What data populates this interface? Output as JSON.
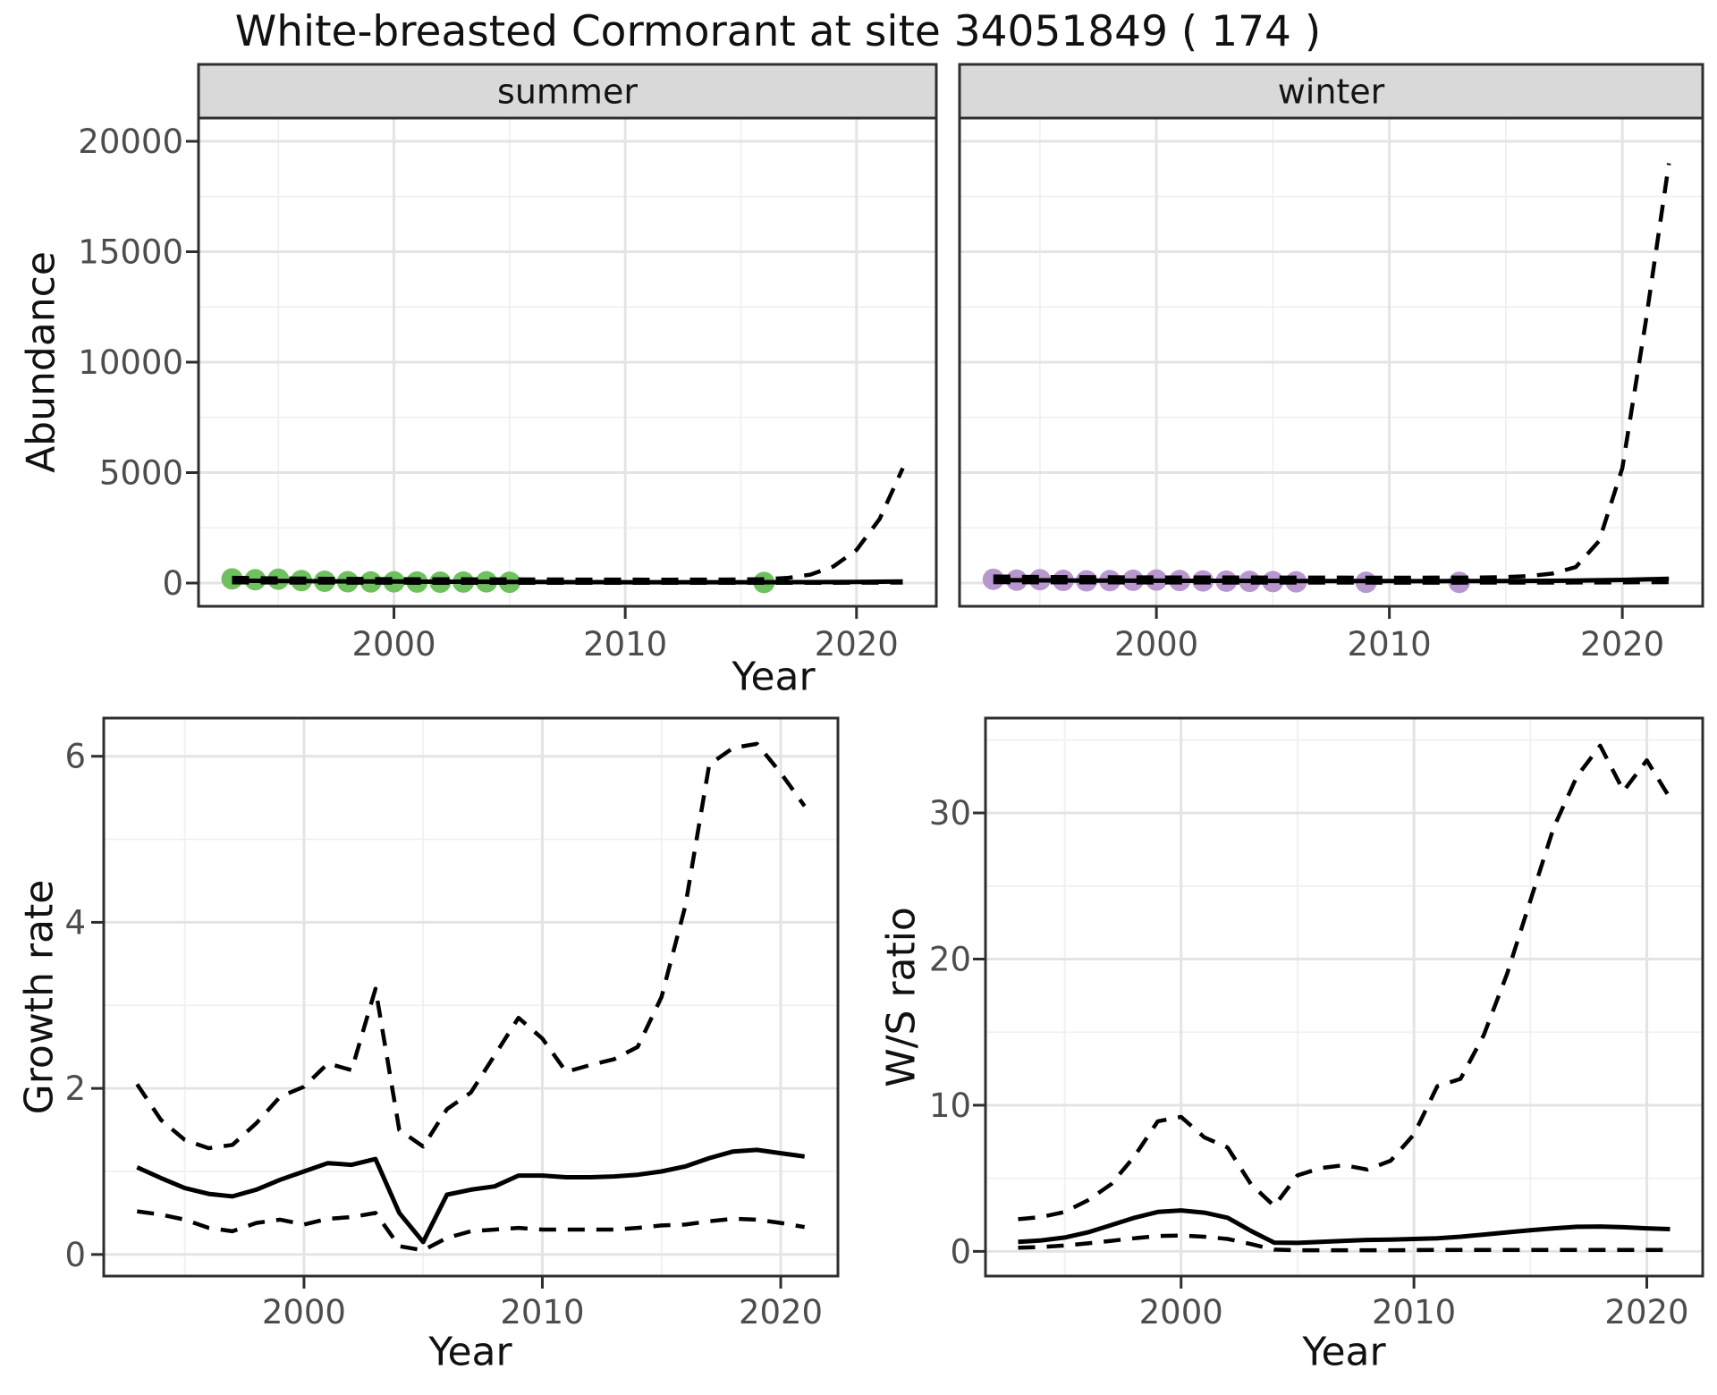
{
  "title": "White-breasted Cormorant at site 34051849 ( 174 )",
  "colors": {
    "summer_point": "#6fc05e",
    "winter_point": "#b897cf",
    "series_line": "#000000",
    "grid_major": "#e4e4e4",
    "grid_minor": "#f0f0f0",
    "strip_bg": "#d9d9d9",
    "panel_border": "#2e2e2e",
    "tick_text": "#4d4d4d",
    "text": "#111111"
  },
  "chart_data": [
    {
      "type": "line",
      "name": "summer-abundance",
      "facet": "summer",
      "xlabel": "Year",
      "ylabel": "Abundance",
      "x_ticks": [
        2000,
        2010,
        2020
      ],
      "x_minor": [
        1995,
        2005,
        2015
      ],
      "y_ticks": [
        0,
        5000,
        10000,
        15000,
        20000
      ],
      "y_minor": [
        2500,
        7500,
        12500,
        17500
      ],
      "xlim": [
        1991.55,
        2023.45
      ],
      "ylim": [
        -1052,
        21052
      ],
      "grid": true,
      "x": [
        1993,
        1994,
        1995,
        1996,
        1997,
        1998,
        1999,
        2000,
        2001,
        2002,
        2003,
        2004,
        2005,
        2006,
        2007,
        2008,
        2009,
        2010,
        2011,
        2012,
        2013,
        2014,
        2015,
        2016,
        2017,
        2018,
        2019,
        2020,
        2021,
        2022
      ],
      "series": [
        {
          "name": "median",
          "style": "solid",
          "values": [
            110,
            100,
            95,
            88,
            82,
            77,
            72,
            68,
            65,
            62,
            60,
            56,
            52,
            48,
            45,
            42,
            40,
            38,
            37,
            36,
            36,
            36,
            37,
            38,
            40,
            43,
            47,
            52,
            60,
            70
          ]
        },
        {
          "name": "upper_95ci",
          "style": "dashed",
          "values": [
            240,
            225,
            212,
            202,
            195,
            189,
            184,
            180,
            176,
            173,
            170,
            168,
            166,
            164,
            162,
            160,
            158,
            157,
            156,
            156,
            157,
            160,
            166,
            178,
            230,
            380,
            750,
            1500,
            2900,
            5200
          ]
        },
        {
          "name": "lower_95ci",
          "style": "dashed",
          "values": [
            30,
            26,
            23,
            21,
            19,
            17,
            16,
            15,
            14,
            13,
            12,
            12,
            11,
            11,
            10,
            10,
            9,
            9,
            9,
            9,
            9,
            9,
            10,
            10,
            11,
            12,
            13,
            15,
            17,
            20
          ]
        }
      ],
      "points": {
        "name": "observed-summer-counts",
        "color_key": "summer_point",
        "x": [
          1993,
          1994,
          1995,
          1996,
          1997,
          1998,
          1999,
          2000,
          2001,
          2002,
          2003,
          2004,
          2005,
          2016
        ],
        "y": [
          190,
          150,
          175,
          110,
          80,
          60,
          50,
          55,
          45,
          40,
          45,
          55,
          35,
          25
        ]
      }
    },
    {
      "type": "line",
      "name": "winter-abundance",
      "facet": "winter",
      "xlabel": "Year",
      "ylabel": "Abundance",
      "x_ticks": [
        2000,
        2010,
        2020
      ],
      "x_minor": [
        1995,
        2005,
        2015
      ],
      "y_ticks": [
        0,
        5000,
        10000,
        15000,
        20000
      ],
      "y_minor": [
        2500,
        7500,
        12500,
        17500
      ],
      "xlim": [
        1991.55,
        2023.45
      ],
      "ylim": [
        -1052,
        21052
      ],
      "grid": true,
      "x": [
        1993,
        1994,
        1995,
        1996,
        1997,
        1998,
        1999,
        2000,
        2001,
        2002,
        2003,
        2004,
        2005,
        2006,
        2007,
        2008,
        2009,
        2010,
        2011,
        2012,
        2013,
        2014,
        2015,
        2016,
        2017,
        2018,
        2019,
        2020,
        2021,
        2022
      ],
      "series": [
        {
          "name": "median",
          "style": "solid",
          "values": [
            130,
            125,
            120,
            116,
            112,
            109,
            107,
            105,
            103,
            101,
            100,
            98,
            96,
            94,
            92,
            90,
            89,
            88,
            87,
            87,
            88,
            90,
            93,
            97,
            103,
            112,
            125,
            142,
            165,
            195
          ]
        },
        {
          "name": "upper_95ci",
          "style": "dashed",
          "values": [
            300,
            290,
            281,
            273,
            267,
            263,
            260,
            257,
            255,
            253,
            251,
            250,
            249,
            248,
            247,
            246,
            245,
            245,
            245,
            246,
            249,
            256,
            272,
            315,
            430,
            720,
            1900,
            5200,
            11800,
            19000
          ]
        },
        {
          "name": "lower_95ci",
          "style": "dashed",
          "values": [
            40,
            36,
            33,
            31,
            29,
            27,
            26,
            25,
            24,
            23,
            22,
            21,
            21,
            20,
            20,
            19,
            19,
            18,
            18,
            18,
            18,
            19,
            19,
            20,
            21,
            23,
            26,
            30,
            35,
            42
          ]
        }
      ],
      "points": {
        "name": "observed-winter-counts",
        "color_key": "winter_point",
        "x": [
          1993,
          1994,
          1995,
          1996,
          1997,
          1998,
          1999,
          2000,
          2001,
          2002,
          2003,
          2004,
          2005,
          2006,
          2009,
          2013
        ],
        "y": [
          170,
          130,
          150,
          120,
          100,
          110,
          125,
          135,
          115,
          95,
          85,
          75,
          65,
          55,
          35,
          30
        ]
      }
    },
    {
      "type": "line",
      "name": "growth-rate",
      "facet": null,
      "xlabel": "Year",
      "ylabel": "Growth rate",
      "x_ticks": [
        2000,
        2010,
        2020
      ],
      "x_minor": [
        1995,
        2005,
        2015
      ],
      "y_ticks": [
        0,
        2,
        4,
        6
      ],
      "y_minor": [
        1,
        3,
        5
      ],
      "xlim": [
        1991.6,
        2022.4
      ],
      "ylim": [
        -0.26,
        6.46
      ],
      "grid": true,
      "x": [
        1993,
        1994,
        1995,
        1996,
        1997,
        1998,
        1999,
        2000,
        2001,
        2002,
        2003,
        2004,
        2005,
        2006,
        2007,
        2008,
        2009,
        2010,
        2011,
        2012,
        2013,
        2014,
        2015,
        2016,
        2017,
        2018,
        2019,
        2020,
        2021
      ],
      "series": [
        {
          "name": "median",
          "style": "solid",
          "values": [
            1.05,
            0.92,
            0.8,
            0.73,
            0.7,
            0.78,
            0.9,
            1.0,
            1.1,
            1.08,
            1.15,
            0.5,
            0.15,
            0.72,
            0.78,
            0.82,
            0.95,
            0.95,
            0.93,
            0.93,
            0.94,
            0.96,
            1.0,
            1.06,
            1.16,
            1.24,
            1.26,
            1.22,
            1.18
          ]
        },
        {
          "name": "upper_95ci",
          "style": "dashed",
          "values": [
            2.05,
            1.62,
            1.38,
            1.28,
            1.32,
            1.58,
            1.9,
            2.02,
            2.3,
            2.22,
            3.2,
            1.5,
            1.3,
            1.75,
            1.95,
            2.4,
            2.85,
            2.6,
            2.2,
            2.28,
            2.35,
            2.5,
            3.1,
            4.2,
            5.9,
            6.1,
            6.15,
            5.8,
            5.4
          ]
        },
        {
          "name": "lower_95ci",
          "style": "dashed",
          "values": [
            0.52,
            0.48,
            0.42,
            0.32,
            0.28,
            0.38,
            0.42,
            0.36,
            0.43,
            0.45,
            0.5,
            0.1,
            0.05,
            0.2,
            0.28,
            0.3,
            0.32,
            0.3,
            0.3,
            0.3,
            0.3,
            0.32,
            0.35,
            0.36,
            0.4,
            0.43,
            0.42,
            0.38,
            0.33
          ]
        }
      ]
    },
    {
      "type": "line",
      "name": "ws-ratio",
      "facet": null,
      "xlabel": "Year",
      "ylabel": "W/S ratio",
      "x_ticks": [
        2000,
        2010,
        2020
      ],
      "x_minor": [
        1995,
        2005,
        2015
      ],
      "y_ticks": [
        0,
        10,
        20,
        30
      ],
      "y_minor": [
        5,
        15,
        25,
        35
      ],
      "xlim": [
        1991.6,
        2022.4
      ],
      "ylim": [
        -1.69,
        36.49
      ],
      "grid": true,
      "x": [
        1993,
        1994,
        1995,
        1996,
        1997,
        1998,
        1999,
        2000,
        2001,
        2002,
        2003,
        2004,
        2005,
        2006,
        2007,
        2008,
        2009,
        2010,
        2011,
        2012,
        2013,
        2014,
        2015,
        2016,
        2017,
        2018,
        2019,
        2020,
        2021
      ],
      "series": [
        {
          "name": "median",
          "style": "solid",
          "values": [
            0.65,
            0.75,
            0.95,
            1.3,
            1.8,
            2.3,
            2.7,
            2.8,
            2.65,
            2.3,
            1.4,
            0.6,
            0.58,
            0.65,
            0.72,
            0.78,
            0.8,
            0.85,
            0.9,
            1.0,
            1.15,
            1.3,
            1.45,
            1.58,
            1.68,
            1.7,
            1.65,
            1.58,
            1.52
          ]
        },
        {
          "name": "upper_95ci",
          "style": "dashed",
          "values": [
            2.2,
            2.35,
            2.7,
            3.5,
            4.6,
            6.5,
            8.9,
            9.2,
            7.8,
            7.1,
            4.6,
            3.1,
            5.2,
            5.7,
            5.9,
            5.6,
            6.2,
            8.0,
            11.3,
            11.8,
            14.8,
            19.0,
            24.0,
            29.0,
            32.5,
            34.6,
            31.5,
            33.6,
            31.0
          ]
        },
        {
          "name": "lower_95ci",
          "style": "dashed",
          "values": [
            0.25,
            0.3,
            0.4,
            0.55,
            0.72,
            0.9,
            1.05,
            1.08,
            1.0,
            0.85,
            0.5,
            0.12,
            0.08,
            0.08,
            0.08,
            0.08,
            0.08,
            0.09,
            0.1,
            0.1,
            0.1,
            0.1,
            0.1,
            0.1,
            0.1,
            0.1,
            0.1,
            0.1,
            0.1
          ]
        }
      ]
    }
  ]
}
